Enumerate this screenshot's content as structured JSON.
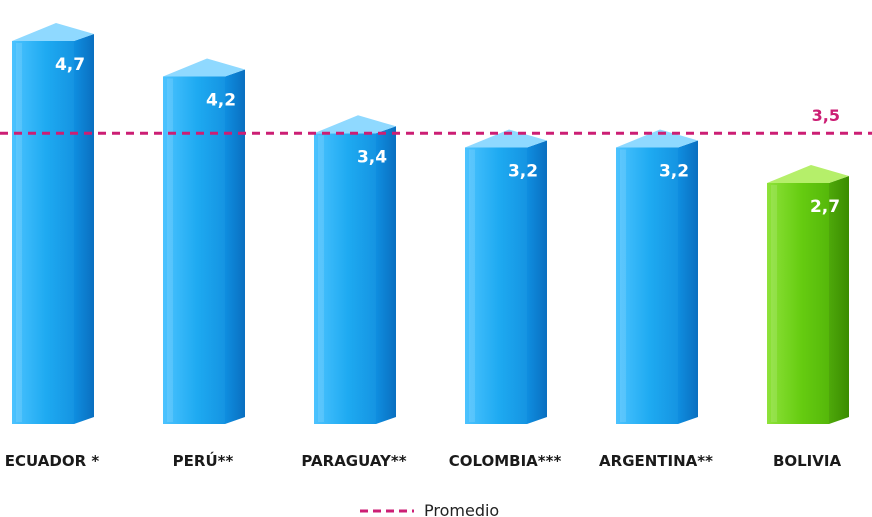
{
  "chart_data": {
    "type": "bar",
    "categories": [
      "ECUADOR *",
      "PERÚ**",
      "PARAGUAY**",
      "COLOMBIA***",
      "ARGENTINA**",
      "BOLIVIA"
    ],
    "values": [
      4.7,
      4.2,
      3.4,
      3.2,
      3.2,
      2.7
    ],
    "value_labels": [
      "4,7",
      "4,2",
      "3,4",
      "3,2",
      "3,2",
      "2,7"
    ],
    "highlight_index": 5,
    "average": {
      "value": 3.5,
      "label": "3,5",
      "legend": "Promedio"
    },
    "grid": false,
    "legend_position": "bottom-center"
  },
  "colors": {
    "bar_front": "#1eaaf1",
    "bar_side": "#0a7fd1",
    "bar_top": "#8fd9ff",
    "highlight_front": "#66cc11",
    "highlight_side": "#3f9a00",
    "highlight_top": "#b5ef6a",
    "average_line": "#cc1e74",
    "value_text": "#ffffff",
    "category_text": "#1a1a1a"
  }
}
